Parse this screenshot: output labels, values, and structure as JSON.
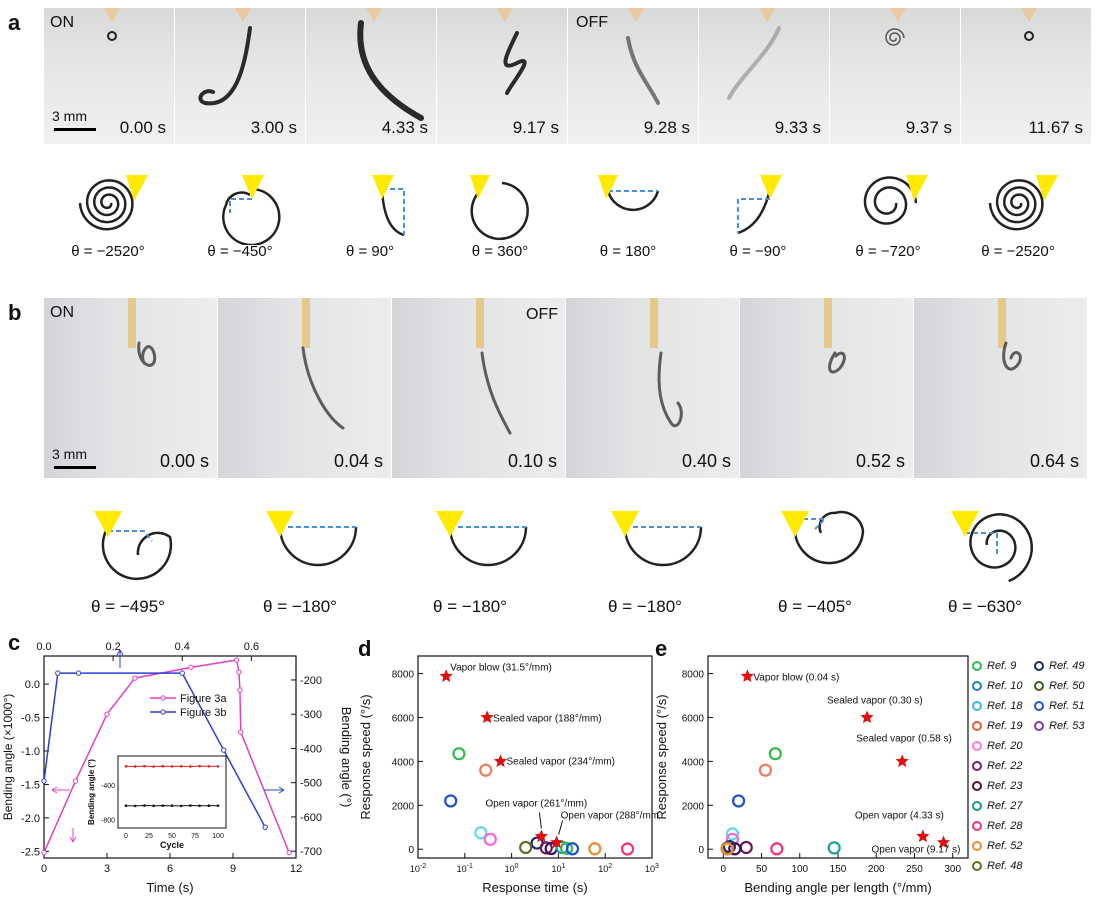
{
  "panel_a": {
    "letter": "a",
    "on_label": "ON",
    "off_label": "OFF",
    "scale_label": "3 mm",
    "times": [
      "0.00 s",
      "3.00 s",
      "4.33 s",
      "9.17 s",
      "9.28 s",
      "9.33 s",
      "9.37 s",
      "11.67 s"
    ],
    "thetas": [
      "θ = −2520°",
      "θ = −450°",
      "θ = 90°",
      "θ = 360°",
      "θ = 180°",
      "θ = −90°",
      "θ = −720°",
      "θ = −2520°"
    ]
  },
  "panel_b": {
    "letter": "b",
    "on_label": "ON",
    "off_label": "OFF",
    "scale_label": "3 mm",
    "times": [
      "0.00 s",
      "0.04 s",
      "0.10 s",
      "0.40 s",
      "0.52 s",
      "0.64 s"
    ],
    "thetas": [
      "θ = −495°",
      "θ = −180°",
      "θ = −180°",
      "θ = −180°",
      "θ = −405°",
      "θ = −630°"
    ]
  },
  "colors": {
    "magenta": "#e040c8",
    "blue": "#2a3fd6",
    "star": "#e01010",
    "sketch_yellow": "#ffea00",
    "dash": "#4a90d9"
  },
  "chart_data": [
    {
      "panel": "c",
      "type": "line",
      "xlabel": "Time (s)",
      "ylabel": "Bending angle (×1000°)",
      "y2label": "Bending angle (°)",
      "x_ticks": [
        "0",
        "3",
        "6",
        "9",
        "12"
      ],
      "x2_ticks": [
        "0.0",
        "0.2",
        "0.4",
        "0.6"
      ],
      "y_ticks": [
        "0.0",
        "-0.5",
        "-1.0",
        "-1.5",
        "-2.0",
        "-2.5"
      ],
      "y2_ticks": [
        "-200",
        "-300",
        "-400",
        "-500",
        "-600",
        "-700"
      ],
      "series": [
        {
          "name": "Figure 3a",
          "x": [
            0,
            1.5,
            3,
            4.33,
            7,
            9.17,
            9.28,
            9.33,
            9.37,
            11.67
          ],
          "y": [
            -2.52,
            -1.45,
            -0.45,
            0.09,
            0.25,
            0.36,
            0.18,
            -0.09,
            -0.72,
            -2.52
          ]
        },
        {
          "name": "Figure 3b",
          "x": [
            0,
            0.04,
            0.1,
            0.4,
            0.52,
            0.64
          ],
          "y": [
            -495,
            -180,
            -180,
            -180,
            -405,
            -630
          ]
        }
      ],
      "inset": {
        "xlabel": "Cycle",
        "ylabel": "Bending angle (°)",
        "x_ticks": [
          "0",
          "25",
          "50",
          "75",
          "100"
        ],
        "y_ticks": [
          "-400",
          "-800"
        ],
        "upper": [
          -180,
          -182,
          -178,
          -183,
          -179,
          -181,
          -180,
          -182,
          -178,
          -180,
          -181
        ],
        "lower": [
          -640,
          -642,
          -638,
          -641,
          -639,
          -640,
          -642,
          -638,
          -641,
          -640,
          -639
        ]
      }
    },
    {
      "panel": "d",
      "type": "scatter",
      "xlabel": "Response time (s)",
      "ylabel": "Response speed (°/s)",
      "xscale": "log",
      "x_ticks": [
        "10-2",
        "10-1",
        "100",
        "101",
        "102",
        "103"
      ],
      "y_ticks": [
        "0",
        "2000",
        "4000",
        "6000",
        "8000"
      ],
      "ylim": [
        -400,
        8800
      ],
      "stars": [
        {
          "label": "Vapor blow (31.5°/mm)",
          "x": 0.04,
          "y": 7875
        },
        {
          "label": "Sealed vapor (188°/mm)",
          "x": 0.3,
          "y": 6000
        },
        {
          "label": "Sealed vapor (234°/mm)",
          "x": 0.58,
          "y": 4000
        },
        {
          "label": "Open vapor (261°/mm)",
          "x": 4.33,
          "y": 581
        },
        {
          "label": "Open vapor (288°/mm)",
          "x": 9.17,
          "y": 305
        }
      ],
      "circles": [
        {
          "x": 0.075,
          "y": 4350,
          "color": "#2ebd4a"
        },
        {
          "x": 0.28,
          "y": 3600,
          "color": "#f07a5a"
        },
        {
          "x": 0.05,
          "y": 2200,
          "color": "#1f4fd0"
        },
        {
          "x": 0.22,
          "y": 750,
          "color": "#5fd8f0"
        },
        {
          "x": 0.35,
          "y": 450,
          "color": "#ff66d9"
        },
        {
          "x": 3.5,
          "y": 280,
          "color": "#1b2a7a"
        },
        {
          "x": 2.0,
          "y": 80,
          "color": "#6b6b20"
        },
        {
          "x": 5.5,
          "y": 60,
          "color": "#6a1a4f"
        },
        {
          "x": 7.0,
          "y": 30,
          "color": "#401060"
        },
        {
          "x": 12,
          "y": 80,
          "color": "#1aa0a0"
        },
        {
          "x": 15,
          "y": 40,
          "color": "#2ebd4a"
        },
        {
          "x": 20,
          "y": 20,
          "color": "#1f4fd0"
        },
        {
          "x": 60,
          "y": 20,
          "color": "#f08a30"
        },
        {
          "x": 300,
          "y": 10,
          "color": "#ff2d7a"
        }
      ]
    },
    {
      "panel": "e",
      "type": "scatter",
      "xlabel": "Bending angle per length (°/mm)",
      "ylabel": "Response speed (°/s)",
      "x_ticks": [
        "0",
        "50",
        "100",
        "150",
        "200",
        "250",
        "300"
      ],
      "y_ticks": [
        "0",
        "2000",
        "4000",
        "6000",
        "8000"
      ],
      "xlim": [
        -20,
        320
      ],
      "ylim": [
        -400,
        8800
      ],
      "stars": [
        {
          "label": "Vapor blow (0.04 s)",
          "x": 31.5,
          "y": 7875
        },
        {
          "label": "Sealed vapor (0.30 s)",
          "x": 188,
          "y": 6000
        },
        {
          "label": "Sealed vapor (0.58 s)",
          "x": 234,
          "y": 4000
        },
        {
          "label": "Open vapor (4.33 s)",
          "x": 261,
          "y": 581
        },
        {
          "label": "Open vapor (9.17 s)",
          "x": 288,
          "y": 305
        }
      ],
      "circles": [
        {
          "x": 68,
          "y": 4350,
          "color": "#2ebd4a"
        },
        {
          "x": 55,
          "y": 3600,
          "color": "#f07a5a"
        },
        {
          "x": 20,
          "y": 2200,
          "color": "#1f4fd0"
        },
        {
          "x": 12,
          "y": 700,
          "color": "#5fd8f0"
        },
        {
          "x": 12,
          "y": 450,
          "color": "#ff66d9"
        },
        {
          "x": 8,
          "y": 120,
          "color": "#1b2a7a"
        },
        {
          "x": 5,
          "y": 50,
          "color": "#6b6b20"
        },
        {
          "x": 30,
          "y": 80,
          "color": "#6a1a4f"
        },
        {
          "x": 15,
          "y": 20,
          "color": "#401060"
        },
        {
          "x": 145,
          "y": 60,
          "color": "#1aa0a0"
        },
        {
          "x": 70,
          "y": 20,
          "color": "#ff2d7a"
        },
        {
          "x": 5,
          "y": 10,
          "color": "#f08a30"
        }
      ]
    }
  ],
  "legend": [
    {
      "label": "Ref. 9",
      "color": "#2ebd4a"
    },
    {
      "label": "Ref. 10",
      "color": "#1f7fc0"
    },
    {
      "label": "Ref. 18",
      "color": "#3fb8e8"
    },
    {
      "label": "Ref. 19",
      "color": "#f05a30"
    },
    {
      "label": "Ref. 20",
      "color": "#ff77e0"
    },
    {
      "label": "Ref. 22",
      "color": "#7a1a6a"
    },
    {
      "label": "Ref. 23",
      "color": "#5a1030"
    },
    {
      "label": "Ref. 27",
      "color": "#1a9a8a"
    },
    {
      "label": "Ref. 28",
      "color": "#ff2d7a"
    },
    {
      "label": "Ref. 52",
      "color": "#f08a30"
    },
    {
      "label": "Ref. 48",
      "color": "#6b6b20"
    },
    {
      "label": "Ref. 49",
      "color": "#1b2a5a"
    },
    {
      "label": "Ref. 50",
      "color": "#3a5a20"
    },
    {
      "label": "Ref. 51",
      "color": "#2a4fd0"
    },
    {
      "label": "Ref. 53",
      "color": "#7a3aa0"
    }
  ],
  "panel_c_letter": "c",
  "panel_d_letter": "d",
  "panel_e_letter": "e"
}
